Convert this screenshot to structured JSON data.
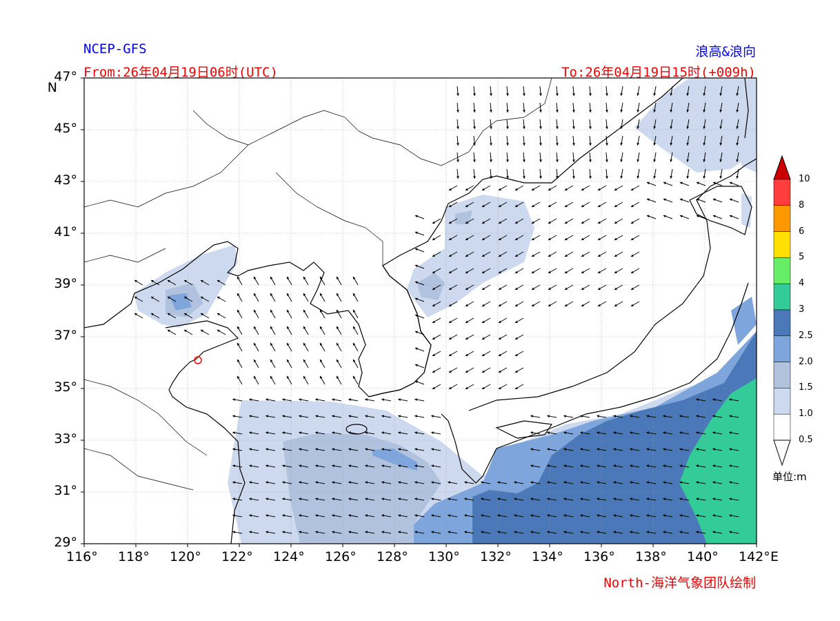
{
  "header": {
    "model": "NCEP-GFS",
    "product": "浪高&浪向",
    "from": "From:26年04月19日06时(UTC)",
    "to": "To:26年04月19日15时(+009h)"
  },
  "footer": {
    "credit": "North-海洋气象团队绘制"
  },
  "axes": {
    "lat_ticks": [
      "47°",
      "45°",
      "43°",
      "41°",
      "39°",
      "37°",
      "35°",
      "33°",
      "31°",
      "29°"
    ],
    "lat_unit": "N",
    "lon_ticks": [
      "116°",
      "118°",
      "120°",
      "122°",
      "124°",
      "126°",
      "128°",
      "130°",
      "132°",
      "134°",
      "136°",
      "138°",
      "140°",
      "142°"
    ],
    "lon_unit": "E",
    "lon_range": [
      116,
      142
    ],
    "lat_range": [
      29,
      47
    ]
  },
  "colorbar": {
    "unit": "单位:m",
    "levels": [
      "10",
      "8",
      "6",
      "5",
      "4",
      "3",
      "2.5",
      "2.0",
      "1.5",
      "1.0",
      "0.5"
    ],
    "colors": [
      "#ff3d3d",
      "#ff9800",
      "#ffe000",
      "#66ee66",
      "#33cc99",
      "#4a78b8",
      "#7ea6dc",
      "#b0c2de",
      "#cdd9ee",
      "#ffffff"
    ],
    "top_color": "#cc0000"
  },
  "colors": {
    "grid": "#999999",
    "arrow": "#000000",
    "land_line": "#000000"
  }
}
